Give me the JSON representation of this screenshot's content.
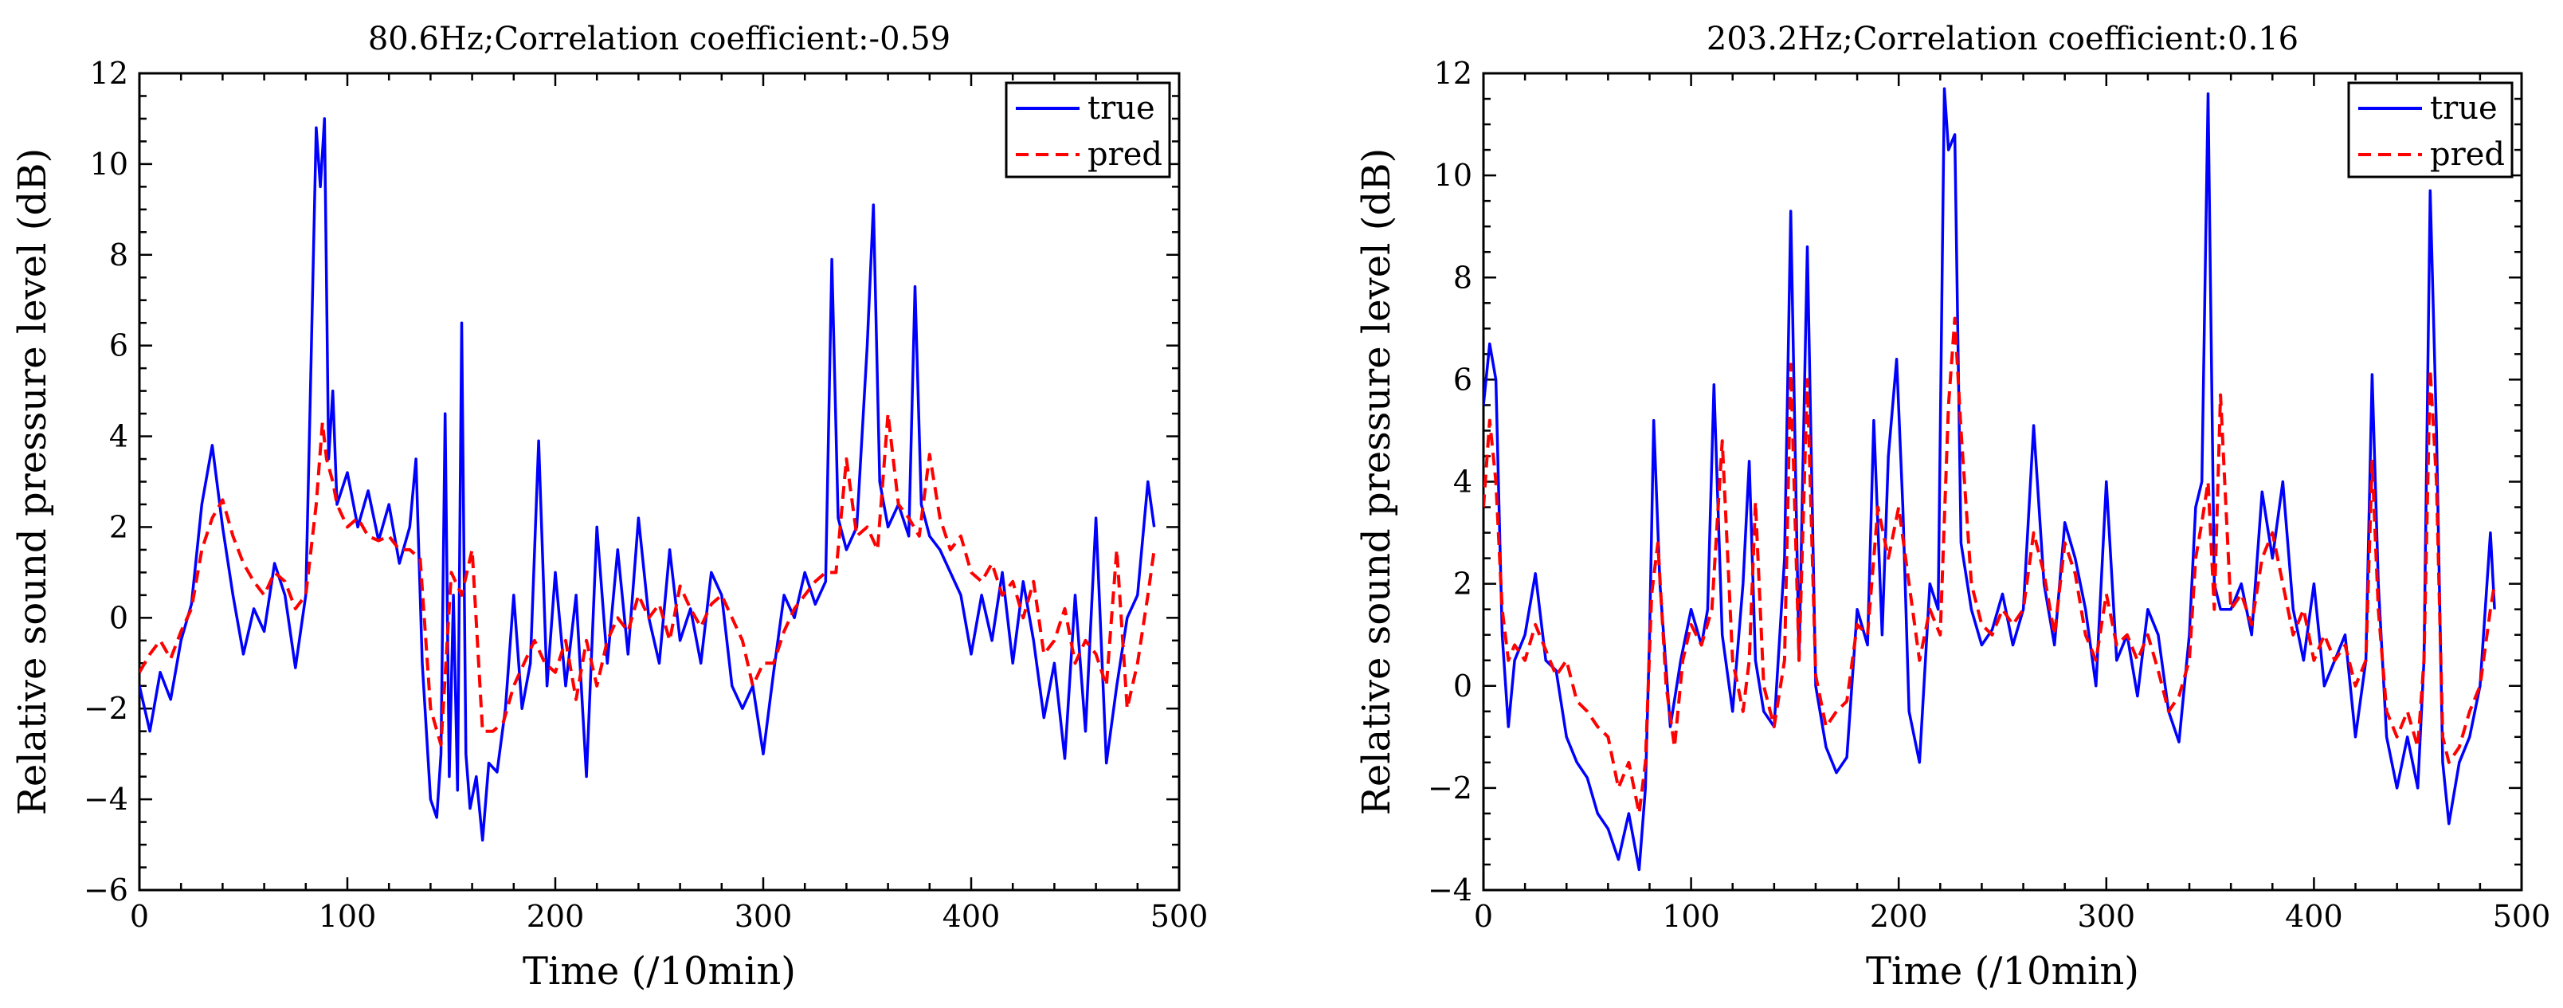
{
  "chart_data": [
    {
      "type": "line",
      "title": "80.6Hz;Correlation coefficient:-0.59",
      "xlabel": "Time (/10min)",
      "ylabel": "Relative sound pressure level (dB)",
      "xlim": [
        0,
        500
      ],
      "ylim": [
        -6,
        12
      ],
      "xticks": [
        0,
        100,
        200,
        300,
        400,
        500
      ],
      "yticks": [
        -6,
        -4,
        -2,
        0,
        2,
        4,
        6,
        8,
        10,
        12
      ],
      "legend_position": "top-right",
      "grid": false,
      "series": [
        {
          "name": "true",
          "color": "#0000ff",
          "dash": "solid",
          "x": [
            0,
            5,
            10,
            15,
            20,
            25,
            30,
            35,
            40,
            45,
            50,
            55,
            60,
            65,
            70,
            75,
            80,
            82,
            85,
            87,
            89,
            91,
            93,
            95,
            100,
            105,
            110,
            115,
            120,
            125,
            130,
            133,
            136,
            140,
            143,
            145,
            147,
            149,
            151,
            153,
            155,
            157,
            159,
            162,
            165,
            168,
            172,
            176,
            180,
            184,
            188,
            192,
            196,
            200,
            205,
            210,
            215,
            220,
            225,
            230,
            235,
            240,
            245,
            250,
            255,
            260,
            265,
            270,
            275,
            280,
            285,
            290,
            295,
            300,
            305,
            310,
            315,
            320,
            325,
            330,
            333,
            336,
            340,
            345,
            350,
            353,
            356,
            360,
            365,
            370,
            373,
            376,
            380,
            385,
            390,
            395,
            400,
            405,
            410,
            415,
            420,
            425,
            430,
            435,
            440,
            445,
            450,
            455,
            460,
            465,
            470,
            475,
            480,
            485,
            488
          ],
          "y": [
            -1.5,
            -2.5,
            -1.2,
            -1.8,
            -0.5,
            0.3,
            2.5,
            3.8,
            2.0,
            0.5,
            -0.8,
            0.2,
            -0.3,
            1.2,
            0.5,
            -1.1,
            0.5,
            4.5,
            10.8,
            9.5,
            11.0,
            3.5,
            5.0,
            2.5,
            3.2,
            2.0,
            2.8,
            1.7,
            2.5,
            1.2,
            2.0,
            3.5,
            -1.0,
            -4.0,
            -4.4,
            -3.0,
            4.5,
            -3.5,
            0.5,
            -3.8,
            6.5,
            -3.0,
            -4.2,
            -3.5,
            -4.9,
            -3.2,
            -3.4,
            -2.0,
            0.5,
            -2.0,
            -1.0,
            3.9,
            -1.5,
            1.0,
            -1.5,
            0.5,
            -3.5,
            2.0,
            -1.0,
            1.5,
            -0.8,
            2.2,
            0.0,
            -1.0,
            1.5,
            -0.5,
            0.2,
            -1.0,
            1.0,
            0.5,
            -1.5,
            -2.0,
            -1.5,
            -3.0,
            -1.2,
            0.5,
            0.0,
            1.0,
            0.3,
            0.8,
            7.9,
            2.2,
            1.5,
            2.0,
            6.0,
            9.1,
            3.0,
            2.0,
            2.5,
            1.8,
            7.3,
            2.5,
            1.8,
            1.5,
            1.0,
            0.5,
            -0.8,
            0.5,
            -0.5,
            1.0,
            -1.0,
            0.8,
            -0.5,
            -2.2,
            -1.0,
            -3.1,
            0.5,
            -2.5,
            2.2,
            -3.2,
            -1.5,
            0.0,
            0.5,
            3.0,
            2.0
          ]
        },
        {
          "name": "pred",
          "color": "#ff0000",
          "dash": "dashed",
          "x": [
            0,
            5,
            10,
            15,
            20,
            25,
            30,
            35,
            40,
            45,
            50,
            55,
            60,
            65,
            70,
            75,
            80,
            85,
            88,
            90,
            93,
            95,
            100,
            105,
            110,
            115,
            120,
            125,
            130,
            135,
            140,
            145,
            150,
            155,
            160,
            165,
            170,
            175,
            180,
            185,
            190,
            195,
            200,
            205,
            210,
            215,
            220,
            225,
            230,
            235,
            240,
            245,
            250,
            255,
            260,
            265,
            270,
            275,
            280,
            285,
            290,
            295,
            300,
            305,
            310,
            315,
            320,
            325,
            330,
            335,
            340,
            345,
            350,
            355,
            360,
            365,
            370,
            375,
            380,
            385,
            390,
            395,
            400,
            405,
            410,
            415,
            420,
            425,
            430,
            435,
            440,
            445,
            450,
            455,
            460,
            465,
            470,
            475,
            480,
            485,
            488
          ],
          "y": [
            -1.2,
            -0.8,
            -0.5,
            -0.9,
            -0.3,
            0.2,
            1.5,
            2.2,
            2.6,
            1.8,
            1.2,
            0.8,
            0.5,
            1.0,
            0.8,
            0.2,
            0.5,
            2.5,
            4.3,
            3.5,
            3.0,
            2.5,
            2.0,
            2.2,
            1.8,
            1.7,
            1.8,
            1.5,
            1.5,
            1.3,
            -2.0,
            -2.8,
            1.0,
            0.5,
            1.5,
            -2.5,
            -2.5,
            -2.3,
            -1.5,
            -1.0,
            -0.5,
            -1.0,
            -1.2,
            -0.5,
            -1.8,
            -0.5,
            -1.5,
            -0.5,
            0.0,
            -0.3,
            0.5,
            0.0,
            0.3,
            -0.5,
            0.7,
            0.2,
            -0.2,
            0.3,
            0.5,
            0.0,
            -0.5,
            -1.5,
            -1.0,
            -1.0,
            -0.3,
            0.2,
            0.5,
            0.8,
            1.0,
            1.0,
            3.5,
            1.8,
            2.0,
            1.5,
            4.5,
            2.5,
            2.2,
            1.8,
            3.6,
            2.2,
            1.5,
            1.8,
            1.0,
            0.8,
            1.2,
            0.5,
            0.8,
            0.0,
            0.8,
            -0.8,
            -0.5,
            0.2,
            -1.0,
            -0.5,
            -0.8,
            -1.5,
            1.5,
            -2.0,
            -1.0,
            0.5,
            1.5
          ]
        }
      ]
    },
    {
      "type": "line",
      "title": "203.2Hz;Correlation coefficient:0.16",
      "xlabel": "Time (/10min)",
      "ylabel": "Relative sound pressure level (dB)",
      "xlim": [
        0,
        500
      ],
      "ylim": [
        -4,
        12
      ],
      "xticks": [
        0,
        100,
        200,
        300,
        400,
        500
      ],
      "yticks": [
        -4,
        -2,
        0,
        2,
        4,
        6,
        8,
        10,
        12
      ],
      "legend_position": "top-right",
      "grid": false,
      "series": [
        {
          "name": "true",
          "color": "#0000ff",
          "dash": "solid",
          "x": [
            0,
            3,
            6,
            9,
            12,
            15,
            20,
            25,
            30,
            35,
            40,
            45,
            50,
            55,
            60,
            65,
            70,
            75,
            78,
            80,
            82,
            85,
            90,
            95,
            100,
            105,
            108,
            111,
            115,
            120,
            125,
            128,
            131,
            135,
            140,
            145,
            148,
            152,
            156,
            160,
            165,
            170,
            175,
            180,
            185,
            188,
            192,
            195,
            199,
            202,
            205,
            210,
            215,
            219,
            222,
            224,
            227,
            230,
            235,
            240,
            245,
            250,
            255,
            260,
            265,
            270,
            275,
            280,
            285,
            290,
            295,
            300,
            305,
            310,
            315,
            320,
            325,
            330,
            335,
            340,
            343,
            346,
            349,
            352,
            355,
            360,
            365,
            370,
            375,
            380,
            385,
            390,
            395,
            400,
            405,
            410,
            415,
            420,
            425,
            428,
            431,
            435,
            440,
            445,
            450,
            453,
            456,
            459,
            462,
            465,
            470,
            475,
            480,
            485,
            487
          ],
          "y": [
            5.5,
            6.7,
            6.0,
            1.0,
            -0.8,
            0.5,
            1.0,
            2.2,
            0.5,
            0.3,
            -1.0,
            -1.5,
            -1.8,
            -2.5,
            -2.8,
            -3.4,
            -2.5,
            -3.6,
            -2.0,
            1.0,
            5.2,
            2.0,
            -0.8,
            0.5,
            1.5,
            0.8,
            1.5,
            5.9,
            1.0,
            -0.5,
            2.0,
            4.4,
            0.5,
            -0.5,
            -0.8,
            2.5,
            9.3,
            0.5,
            8.6,
            0.0,
            -1.2,
            -1.7,
            -1.4,
            1.5,
            0.8,
            5.2,
            1.0,
            4.5,
            6.4,
            3.5,
            -0.5,
            -1.5,
            2.0,
            1.5,
            11.7,
            10.5,
            10.8,
            2.8,
            1.5,
            0.8,
            1.1,
            1.8,
            0.8,
            1.5,
            5.1,
            2.0,
            0.8,
            3.2,
            2.5,
            1.5,
            0.0,
            4.0,
            0.5,
            1.0,
            -0.2,
            1.5,
            1.0,
            -0.5,
            -1.1,
            1.0,
            3.5,
            4.0,
            11.6,
            2.0,
            1.5,
            1.5,
            2.0,
            1.0,
            3.8,
            2.5,
            4.0,
            1.5,
            0.5,
            2.0,
            0.0,
            0.5,
            1.0,
            -1.0,
            0.5,
            6.1,
            2.0,
            -1.0,
            -2.0,
            -1.0,
            -2.0,
            0.5,
            9.7,
            5.0,
            -1.5,
            -2.7,
            -1.5,
            -1.0,
            0.0,
            3.0,
            1.5
          ]
        },
        {
          "name": "pred",
          "color": "#ff0000",
          "dash": "dashed",
          "x": [
            0,
            3,
            6,
            9,
            12,
            15,
            20,
            25,
            30,
            35,
            40,
            45,
            50,
            55,
            60,
            65,
            70,
            75,
            78,
            81,
            84,
            88,
            92,
            96,
            100,
            105,
            110,
            115,
            120,
            125,
            128,
            131,
            135,
            140,
            145,
            148,
            152,
            156,
            160,
            165,
            170,
            175,
            180,
            185,
            190,
            195,
            200,
            205,
            210,
            215,
            220,
            224,
            227,
            230,
            235,
            240,
            245,
            250,
            255,
            260,
            265,
            270,
            275,
            280,
            285,
            290,
            295,
            300,
            305,
            310,
            315,
            320,
            325,
            330,
            335,
            340,
            343,
            346,
            349,
            352,
            355,
            360,
            365,
            370,
            375,
            380,
            385,
            390,
            395,
            400,
            405,
            410,
            415,
            420,
            425,
            428,
            431,
            435,
            440,
            445,
            450,
            453,
            456,
            459,
            462,
            465,
            470,
            475,
            480,
            485,
            487
          ],
          "y": [
            3.5,
            5.2,
            4.0,
            1.5,
            0.5,
            0.8,
            0.5,
            1.2,
            0.7,
            0.2,
            0.5,
            -0.3,
            -0.5,
            -0.8,
            -1.0,
            -2.0,
            -1.5,
            -2.5,
            -1.5,
            1.8,
            2.8,
            0.0,
            -1.2,
            0.5,
            1.2,
            0.8,
            1.5,
            4.8,
            0.5,
            -0.5,
            0.5,
            3.6,
            0.0,
            -0.8,
            0.5,
            6.3,
            0.5,
            6.0,
            0.2,
            -0.8,
            -0.5,
            -0.3,
            1.2,
            1.0,
            3.5,
            2.5,
            3.5,
            2.0,
            0.5,
            1.5,
            1.0,
            5.5,
            7.2,
            5.0,
            2.0,
            1.2,
            1.0,
            1.5,
            1.2,
            1.5,
            3.0,
            2.2,
            1.0,
            2.8,
            2.2,
            1.0,
            0.5,
            1.8,
            0.8,
            1.0,
            0.5,
            1.0,
            0.3,
            -0.5,
            -0.2,
            0.5,
            2.5,
            3.2,
            4.0,
            1.5,
            5.7,
            1.5,
            1.8,
            1.2,
            2.5,
            3.0,
            2.0,
            1.0,
            1.5,
            0.5,
            1.0,
            0.5,
            0.8,
            0.0,
            0.5,
            4.4,
            1.5,
            -0.5,
            -1.0,
            -0.5,
            -1.2,
            0.5,
            6.2,
            4.0,
            -1.0,
            -1.5,
            -1.2,
            -0.5,
            0.0,
            1.5,
            2.0
          ]
        }
      ]
    }
  ]
}
